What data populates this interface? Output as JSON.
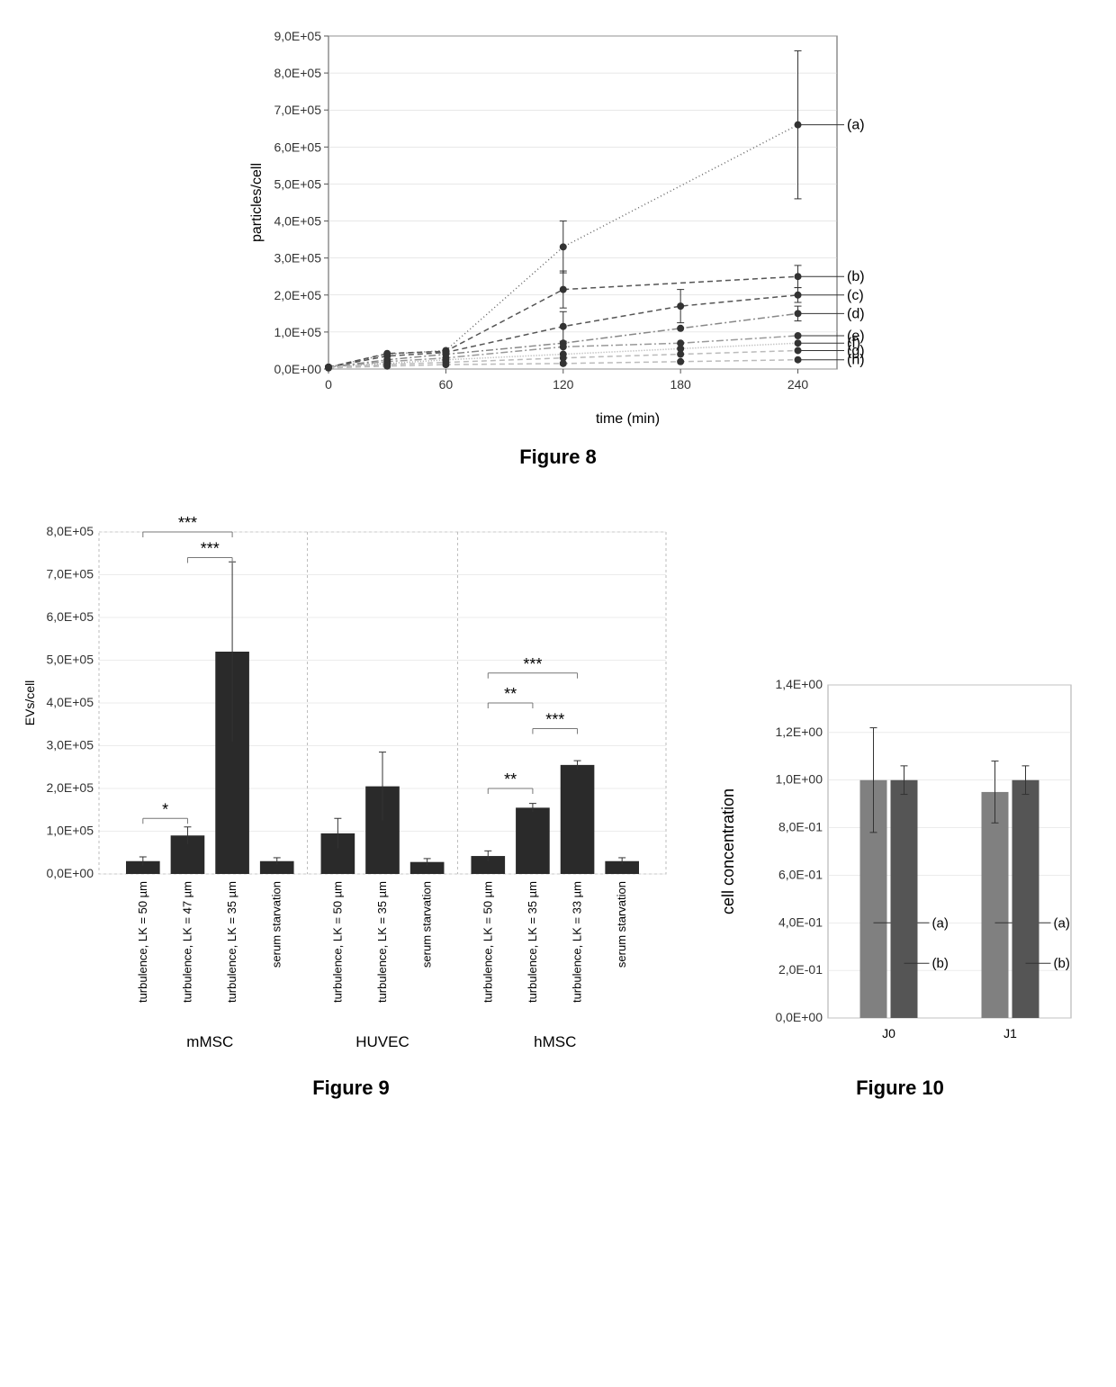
{
  "figure8": {
    "title": "Figure 8",
    "type": "line",
    "xlabel": "time (min)",
    "ylabel": "particles/cell",
    "xlim": [
      0,
      260
    ],
    "ylim": [
      0,
      900000
    ],
    "xtick_step": 60,
    "yticks": [
      "0,0E+00",
      "1,0E+05",
      "2,0E+05",
      "3,0E+05",
      "4,0E+05",
      "5,0E+05",
      "6,0E+05",
      "7,0E+05",
      "8,0E+05",
      "9,0E+05"
    ],
    "ytick_values": [
      0,
      100000,
      200000,
      300000,
      400000,
      500000,
      600000,
      700000,
      800000,
      900000
    ],
    "background_color": "#ffffff",
    "grid_color": "#d0d0d0",
    "axis_color": "#555555",
    "marker_color": "#333333",
    "marker_size": 4,
    "label_fontsize": 16,
    "series": [
      {
        "label": "(a)",
        "x": [
          0,
          30,
          60,
          120,
          240
        ],
        "y": [
          5000,
          40000,
          50000,
          330000,
          660000
        ],
        "err": [
          0,
          0,
          0,
          70000,
          200000
        ],
        "color": "#666666",
        "dash": "1,3"
      },
      {
        "label": "(b)",
        "x": [
          0,
          30,
          60,
          120,
          240
        ],
        "y": [
          5000,
          42000,
          48000,
          215000,
          250000
        ],
        "err": [
          0,
          0,
          0,
          50000,
          30000
        ],
        "color": "#555555",
        "dash": "6,4"
      },
      {
        "label": "(c)",
        "x": [
          0,
          30,
          60,
          120,
          180,
          240
        ],
        "y": [
          5000,
          35000,
          45000,
          115000,
          170000,
          200000
        ],
        "err": [
          0,
          0,
          0,
          40000,
          45000,
          20000
        ],
        "color": "#555555",
        "dash": "6,4"
      },
      {
        "label": "(d)",
        "x": [
          0,
          30,
          60,
          120,
          180,
          240
        ],
        "y": [
          5000,
          25000,
          40000,
          70000,
          110000,
          150000
        ],
        "err": [
          0,
          0,
          0,
          0,
          0,
          20000
        ],
        "color": "#888888",
        "dash": "8,3,2,3"
      },
      {
        "label": "(e)",
        "x": [
          0,
          30,
          60,
          120,
          180,
          240
        ],
        "y": [
          5000,
          20000,
          30000,
          60000,
          70000,
          90000
        ],
        "err": [
          0,
          0,
          0,
          0,
          0,
          0
        ],
        "color": "#999999",
        "dash": "8,3,2,3"
      },
      {
        "label": "(f)",
        "x": [
          0,
          30,
          60,
          120,
          180,
          240
        ],
        "y": [
          5000,
          15000,
          25000,
          40000,
          55000,
          70000
        ],
        "err": [
          0,
          0,
          0,
          0,
          0,
          0
        ],
        "color": "#aaaaaa",
        "dash": "1,2"
      },
      {
        "label": "(g)",
        "x": [
          0,
          30,
          60,
          120,
          180,
          240
        ],
        "y": [
          5000,
          12000,
          18000,
          30000,
          40000,
          50000
        ],
        "err": [
          0,
          0,
          0,
          0,
          0,
          0
        ],
        "color": "#bbbbbb",
        "dash": "6,4"
      },
      {
        "label": "(h)",
        "x": [
          0,
          30,
          60,
          120,
          180,
          240
        ],
        "y": [
          3000,
          8000,
          12000,
          15000,
          20000,
          25000
        ],
        "err": [
          0,
          0,
          0,
          0,
          0,
          0
        ],
        "color": "#bbbbbb",
        "dash": "6,4"
      }
    ]
  },
  "figure9": {
    "title": "Figure 9",
    "type": "bar",
    "ylabel": "EVs/cell",
    "ylim": [
      0,
      800000
    ],
    "yticks": [
      "0,0E+00",
      "1,0E+05",
      "2,0E+05",
      "3,0E+05",
      "4,0E+05",
      "5,0E+05",
      "6,0E+05",
      "7,0E+05",
      "8,0E+05"
    ],
    "ytick_values": [
      0,
      100000,
      200000,
      300000,
      400000,
      500000,
      600000,
      700000,
      800000
    ],
    "bar_color": "#2a2a2a",
    "border_color": "#bbbbbb",
    "grid_color": "#d8d8d8",
    "groups": [
      {
        "name": "mMSC",
        "bars": [
          {
            "label": "turbulence, LK = 50 µm",
            "value": 30000,
            "err": 10000
          },
          {
            "label": "turbulence, LK = 47 µm",
            "value": 90000,
            "err": 20000
          },
          {
            "label": "turbulence, LK = 35 µm",
            "value": 520000,
            "err": 210000
          },
          {
            "label": "serum starvation",
            "value": 30000,
            "err": 8000
          }
        ],
        "sig": [
          {
            "from": 0,
            "to": 2,
            "y": 800000,
            "label": "***"
          },
          {
            "from": 1,
            "to": 2,
            "y": 740000,
            "label": "***"
          },
          {
            "from": 0,
            "to": 1,
            "y": 130000,
            "label": "*"
          }
        ]
      },
      {
        "name": "HUVEC",
        "bars": [
          {
            "label": "turbulence, LK = 50 µm",
            "value": 95000,
            "err": 35000
          },
          {
            "label": "turbulence, LK = 35 µm",
            "value": 205000,
            "err": 80000
          },
          {
            "label": "serum starvation",
            "value": 28000,
            "err": 8000
          }
        ],
        "sig": []
      },
      {
        "name": "hMSC",
        "bars": [
          {
            "label": "turbulence, LK = 50 µm",
            "value": 42000,
            "err": 12000
          },
          {
            "label": "turbulence, LK = 35 µm",
            "value": 155000,
            "err": 10000
          },
          {
            "label": "turbulence, LK = 33 µm",
            "value": 255000,
            "err": 10000
          },
          {
            "label": "serum starvation",
            "value": 30000,
            "err": 8000
          }
        ],
        "sig": [
          {
            "from": 0,
            "to": 2,
            "y": 470000,
            "label": "***"
          },
          {
            "from": 0,
            "to": 1,
            "y": 400000,
            "label": "**"
          },
          {
            "from": 1,
            "to": 2,
            "y": 340000,
            "label": "***"
          },
          {
            "from": 0,
            "to": 1,
            "y": 200000,
            "label": "**"
          }
        ]
      }
    ]
  },
  "figure10": {
    "title": "Figure 10",
    "type": "bar",
    "ylabel": "cell concentration",
    "ylim": [
      0,
      1.4
    ],
    "yticks": [
      "0,0E+00",
      "2,0E-01",
      "4,0E-01",
      "6,0E-01",
      "8,0E-01",
      "1,0E+00",
      "1,2E+00",
      "1,4E+00"
    ],
    "ytick_values": [
      0,
      0.2,
      0.4,
      0.6,
      0.8,
      1.0,
      1.2,
      1.4
    ],
    "grid_color": "#d8d8d8",
    "categories": [
      "J0",
      "J1"
    ],
    "series_labels": [
      "(a)",
      "(b)"
    ],
    "bar_colors": [
      "#808080",
      "#555555"
    ],
    "data": [
      {
        "cat": "J0",
        "bars": [
          {
            "value": 1.0,
            "err": 0.22
          },
          {
            "value": 1.0,
            "err": 0.06
          }
        ]
      },
      {
        "cat": "J1",
        "bars": [
          {
            "value": 0.95,
            "err": 0.13
          },
          {
            "value": 1.0,
            "err": 0.06
          }
        ]
      }
    ]
  }
}
